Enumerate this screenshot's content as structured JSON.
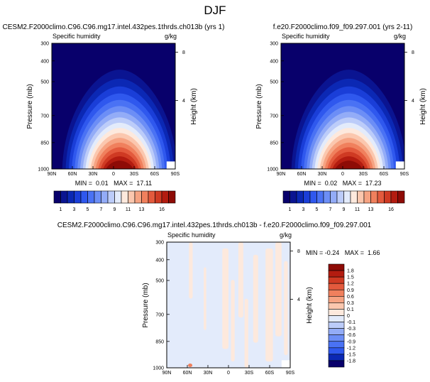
{
  "figure_title": "DJF",
  "chart_data": [
    {
      "type": "contour",
      "title": "CESM2.F2000climo.C96.C96.mg17.intel.432pes.1thrds.ch013b (yrs 1)",
      "subtitle": "Specific humidity",
      "units": "g/kg",
      "ylabel": "Pressure (mb)",
      "y2label": "Height (km)",
      "x_ticks": [
        "90N",
        "60N",
        "30N",
        "0",
        "30S",
        "60S",
        "90S"
      ],
      "y_ticks": [
        "300",
        "400",
        "500",
        "700",
        "850",
        "1000"
      ],
      "y2_ticks": [
        "8",
        "4"
      ],
      "stats": "MIN =  0.01   MAX =  17.11",
      "peak": 17.11,
      "colorbar": {
        "orientation": "horizontal",
        "colors": [
          "#08006b",
          "#0a1491",
          "#0b28b4",
          "#1a3ed8",
          "#2f58ee",
          "#4a72f4",
          "#6c8ef6",
          "#93acf7",
          "#bcccf9",
          "#e3ebfb",
          "#fde9dd",
          "#fbc7ae",
          "#f6a382",
          "#f0805d",
          "#e35a3d",
          "#cf3a23",
          "#b31c10",
          "#8e0b06"
        ],
        "labels": [
          "1",
          "3",
          "5",
          "7",
          "9",
          "11",
          "13",
          "16"
        ]
      }
    },
    {
      "type": "contour",
      "title": "f.e20.F2000climo.f09_f09.297.001 (yrs 2-11)",
      "subtitle": "Specific humidity",
      "units": "g/kg",
      "ylabel": "Pressure (mb)",
      "y2label": "Height (km)",
      "x_ticks": [
        "90N",
        "60N",
        "30N",
        "0",
        "30S",
        "60S",
        "90S"
      ],
      "y_ticks": [
        "300",
        "400",
        "500",
        "700",
        "850",
        "1000"
      ],
      "y2_ticks": [
        "8",
        "4"
      ],
      "stats": "MIN =  0.02   MAX =  17.23",
      "peak": 17.23,
      "colorbar": {
        "orientation": "horizontal",
        "colors": [
          "#08006b",
          "#0a1491",
          "#0b28b4",
          "#1a3ed8",
          "#2f58ee",
          "#4a72f4",
          "#6c8ef6",
          "#93acf7",
          "#bcccf9",
          "#e3ebfb",
          "#fde9dd",
          "#fbc7ae",
          "#f6a382",
          "#f0805d",
          "#e35a3d",
          "#cf3a23",
          "#b31c10",
          "#8e0b06"
        ],
        "labels": [
          "1",
          "3",
          "5",
          "7",
          "9",
          "11",
          "13",
          "16"
        ]
      }
    },
    {
      "type": "contour",
      "title": "CESM2.F2000climo.C96.C96.mg17.intel.432pes.1thrds.ch013b - f.e20.F2000climo.f09_f09.297.001",
      "subtitle": "Specific humidity",
      "units": "g/kg",
      "ylabel": "Pressure (mb)",
      "y2label": "Height (km)",
      "x_ticks": [
        "90N",
        "60N",
        "30N",
        "0",
        "30S",
        "60S",
        "90S"
      ],
      "y_ticks": [
        "300",
        "400",
        "500",
        "700",
        "850",
        "1000"
      ],
      "y2_ticks": [
        "8",
        "4"
      ],
      "stats": "MIN = -0.24   MAX =  1.66",
      "colorbar": {
        "orientation": "vertical",
        "colors": [
          "#8e0b06",
          "#b31c10",
          "#cf3a23",
          "#e35a3d",
          "#f0805d",
          "#f6a382",
          "#fbc7ae",
          "#fde9dd",
          "#e3ebfb",
          "#bcccf9",
          "#93acf7",
          "#6c8ef6",
          "#4a72f4",
          "#2f58ee",
          "#0b28b4",
          "#08006b"
        ],
        "labels": [
          "1.8",
          "1.5",
          "1.2",
          "0.9",
          "0.6",
          "0.3",
          "0.1",
          "0",
          "-0.1",
          "-0.3",
          "-0.6",
          "-0.9",
          "-1.2",
          "-1.5",
          "-1.8"
        ]
      }
    }
  ]
}
